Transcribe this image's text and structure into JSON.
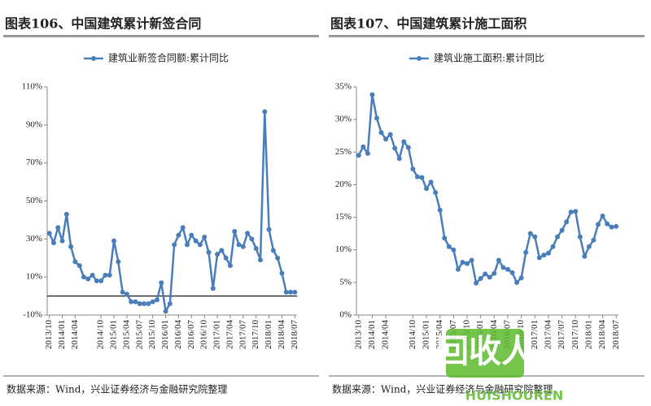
{
  "chart_data": [
    {
      "type": "line",
      "title": "图表106、中国建筑累计新签合同",
      "source": "数据来源：Wind，兴业证券经济与金融研究院整理",
      "categories": [
        "2013/10",
        null,
        null,
        "2014/01",
        null,
        null,
        "2014/04",
        null,
        null,
        null,
        null,
        null,
        "2014/10",
        null,
        null,
        "2015/01",
        null,
        null,
        "2015/04",
        null,
        null,
        "2015/07",
        null,
        null,
        "2015/10",
        null,
        null,
        "2016/01",
        null,
        null,
        "2016/04",
        null,
        null,
        "2016/07",
        null,
        null,
        "2016/10",
        null,
        null,
        "2017/01",
        null,
        null,
        "2017/04",
        null,
        null,
        "2017/07",
        null,
        null,
        "2017/10",
        null,
        null,
        "2018/01",
        null,
        null,
        "2018/04",
        null,
        null,
        "2018/07"
      ],
      "series": [
        {
          "name": "建筑业新签合同额:累计同比",
          "color": "#4a7ebb",
          "values": [
            33,
            28,
            36,
            29,
            43,
            26,
            18,
            16,
            10,
            9,
            11,
            8,
            8,
            11,
            11,
            29,
            18,
            2,
            1,
            -3,
            -3,
            -4,
            -4,
            -4,
            -3,
            -2,
            7,
            -8,
            -4,
            27,
            32,
            36,
            27,
            32,
            29,
            27,
            31,
            23,
            4,
            22,
            24,
            20,
            16,
            34,
            27,
            26,
            33,
            30,
            25,
            19,
            97,
            35,
            24,
            20,
            12,
            2,
            2,
            2
          ]
        }
      ],
      "ylim": [
        -10,
        110
      ],
      "yticks": [
        {
          "value": -10,
          "label": "-10%"
        },
        {
          "value": 10,
          "label": "10%"
        },
        {
          "value": 30,
          "label": "30%"
        },
        {
          "value": 50,
          "label": "50%"
        },
        {
          "value": 70,
          "label": "70%"
        },
        {
          "value": 90,
          "label": "90%"
        },
        {
          "value": 110,
          "label": "110%"
        }
      ],
      "zero_line": true
    },
    {
      "type": "line",
      "title": "图表107、中国建筑累计施工面积",
      "source": "数据来源：Wind，兴业证券经济与金融研究院整理",
      "categories": [
        "2013/10",
        null,
        null,
        "2014/01",
        null,
        null,
        "2014/04",
        null,
        null,
        null,
        null,
        null,
        "2014/10",
        null,
        null,
        "2015/01",
        null,
        null,
        "2015/04",
        null,
        null,
        "2015/07",
        null,
        null,
        "2015/10",
        null,
        null,
        "2016/01",
        null,
        null,
        "2016/04",
        null,
        null,
        "2016/07",
        null,
        null,
        "2016/10",
        null,
        null,
        "2017/01",
        null,
        null,
        "2017/04",
        null,
        null,
        "2017/07",
        null,
        null,
        "2017/10",
        null,
        null,
        "2018/01",
        null,
        null,
        "2018/04",
        null,
        null,
        "2018/07"
      ],
      "series": [
        {
          "name": "建筑业施工面积:累计同比",
          "color": "#4a7ebb",
          "values": [
            24.5,
            25.8,
            24.8,
            33.8,
            30.2,
            28,
            27,
            27.7,
            25.6,
            24,
            26.6,
            25.7,
            22.4,
            21.2,
            21.1,
            19.4,
            20.4,
            18.8,
            16.1,
            11.8,
            10.5,
            10,
            7,
            8.1,
            7.9,
            8.4,
            4.9,
            5.6,
            6.3,
            5.8,
            6.4,
            8.4,
            7.3,
            7,
            6.5,
            5,
            5.7,
            9.6,
            12.5,
            12,
            8.8,
            9.2,
            9.5,
            10.5,
            12,
            13,
            14.3,
            15.8,
            15.9,
            12,
            9,
            10.5,
            11.5,
            13.9,
            15.2,
            14,
            13.5,
            13.6
          ]
        }
      ],
      "ylim": [
        0,
        35
      ],
      "yticks": [
        {
          "value": 0,
          "label": "0%"
        },
        {
          "value": 5,
          "label": "5%"
        },
        {
          "value": 10,
          "label": "10%"
        },
        {
          "value": 15,
          "label": "15%"
        },
        {
          "value": 20,
          "label": "20%"
        },
        {
          "value": 25,
          "label": "25%"
        },
        {
          "value": 30,
          "label": "30%"
        },
        {
          "value": 35,
          "label": "35%"
        }
      ],
      "zero_line": false
    }
  ],
  "watermark": {
    "text": "回收人",
    "subtext": "HUISHOUREN"
  }
}
